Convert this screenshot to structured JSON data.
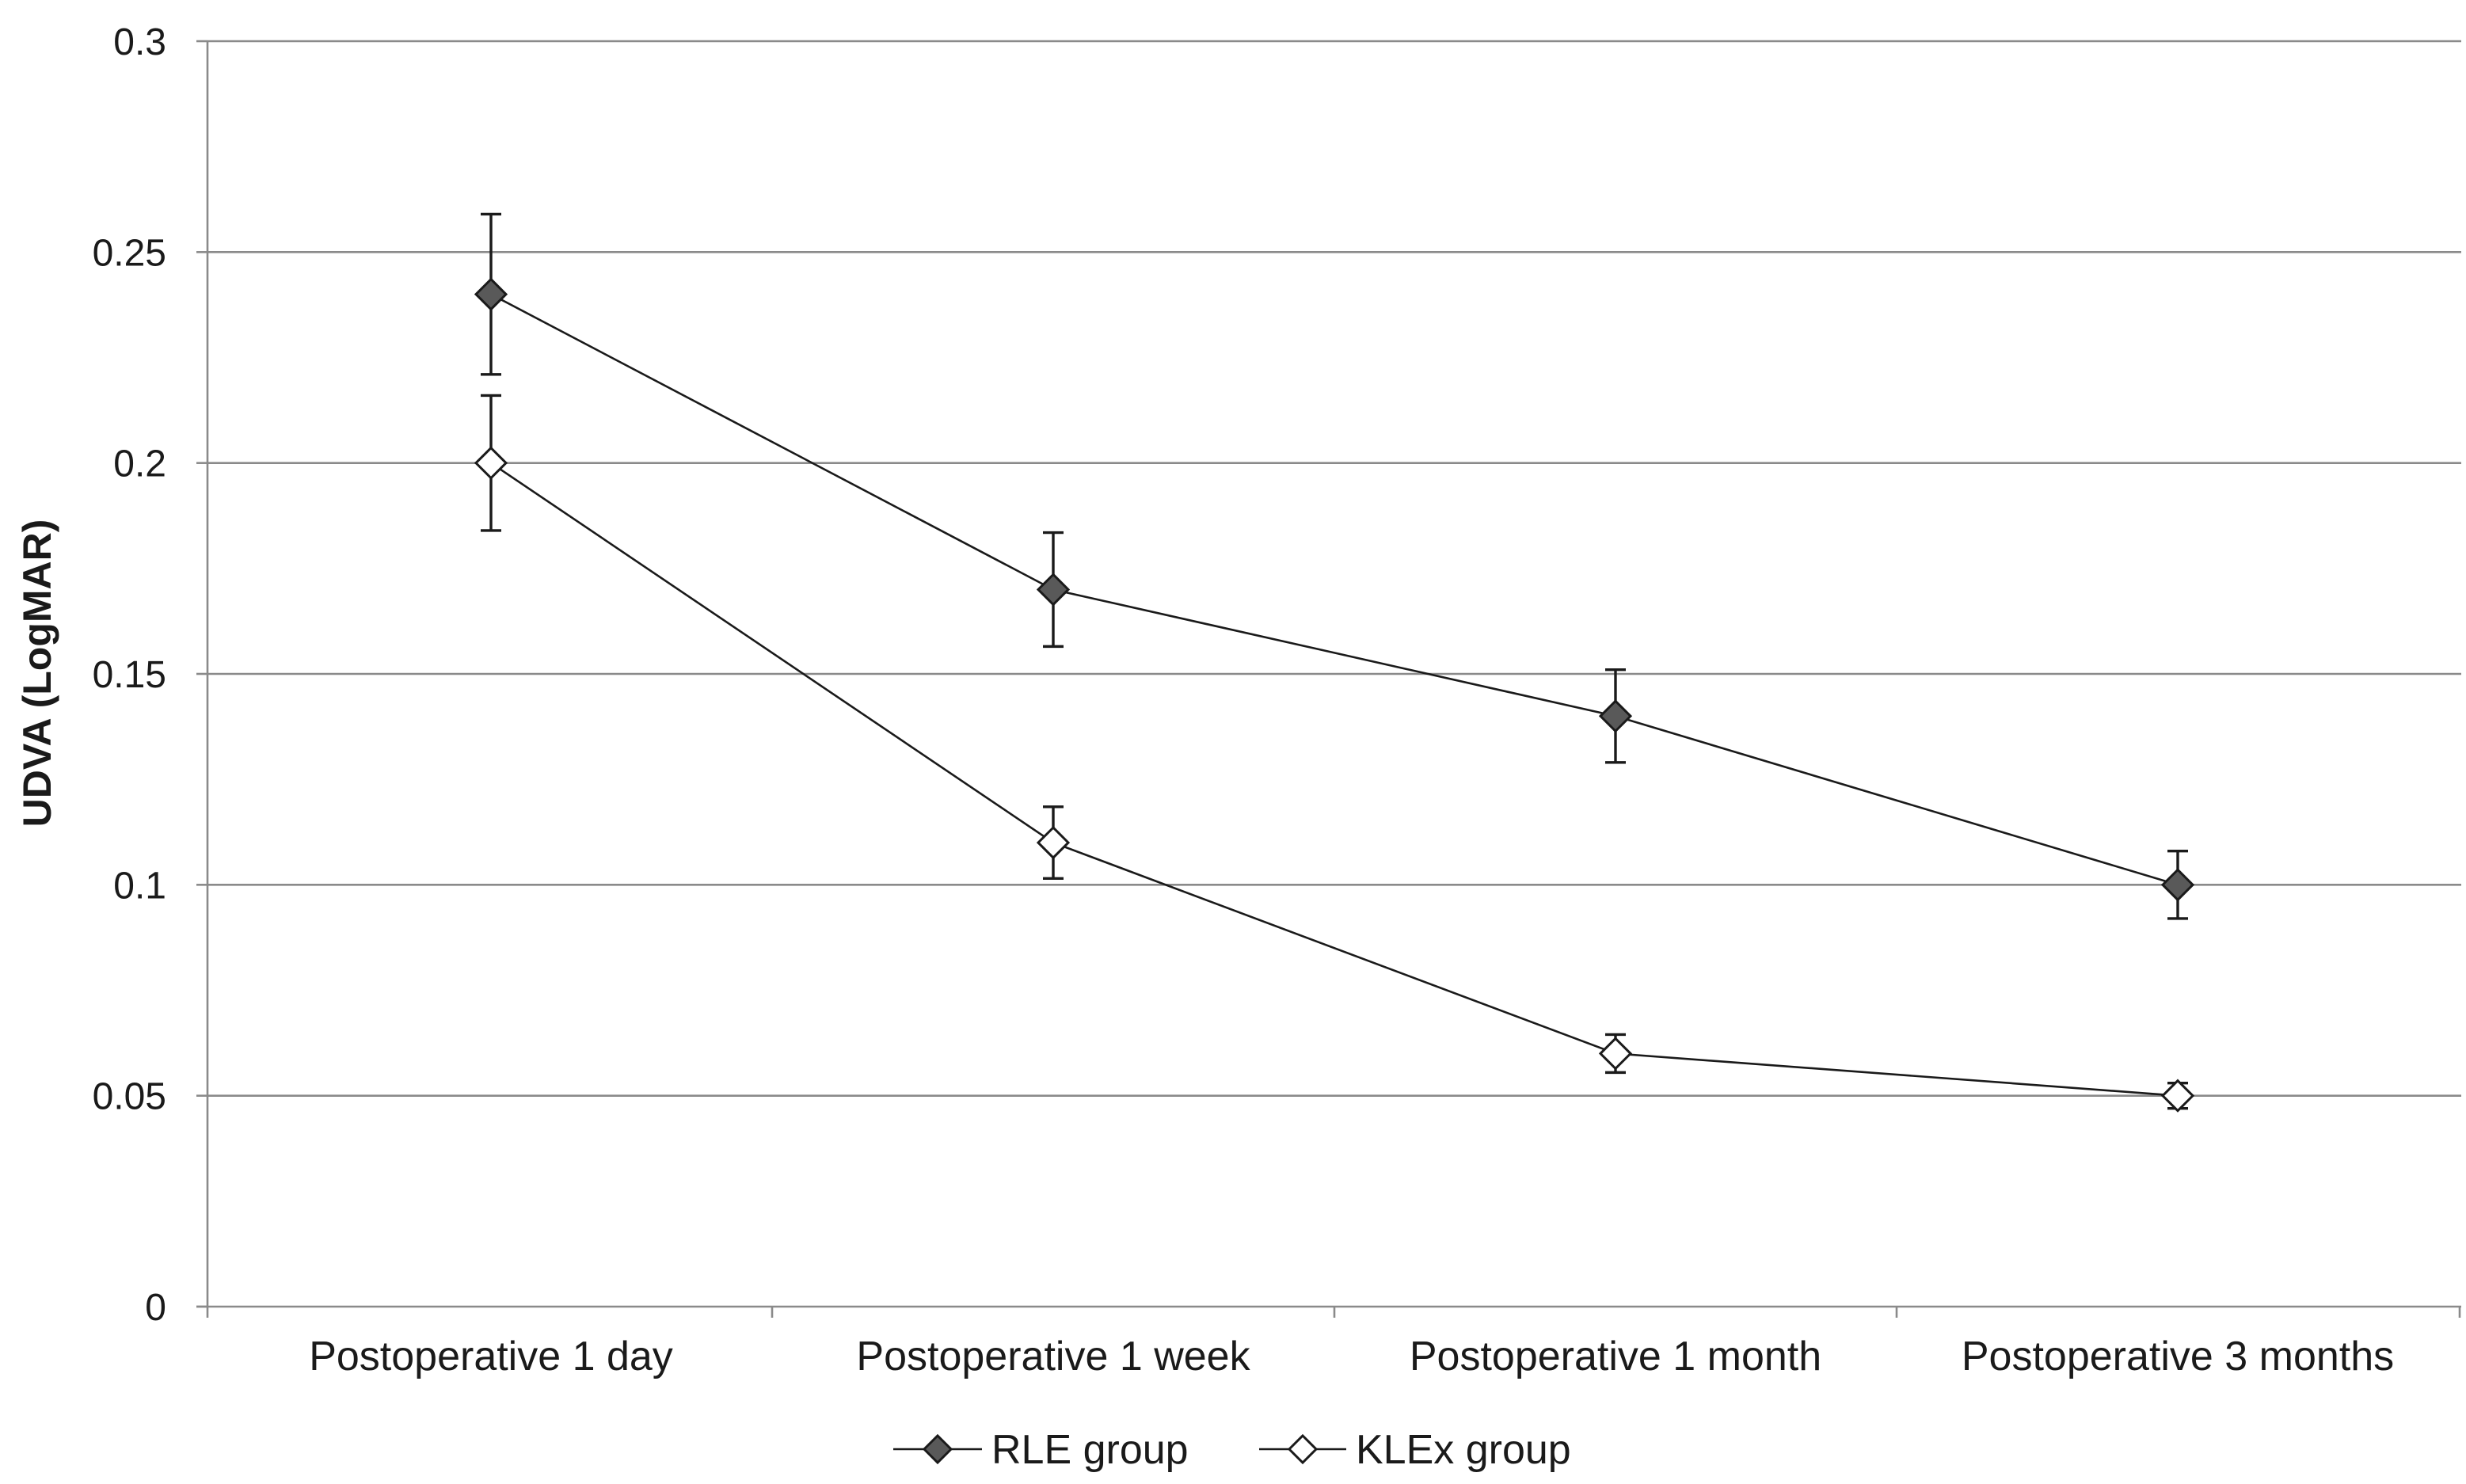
{
  "chart_data": {
    "type": "line",
    "title": "",
    "xlabel": "",
    "ylabel": "UDVA (LogMAR)",
    "ylim": [
      0,
      0.3
    ],
    "yticks": [
      0,
      0.05,
      0.1,
      0.15,
      0.2,
      0.25,
      0.3
    ],
    "ytick_labels": [
      "0",
      "0.05",
      "0.1",
      "0.15",
      "0.2",
      "0.25",
      "0.3"
    ],
    "grid": true,
    "legend_position": "bottom-center",
    "categories": [
      "Postoperative 1 day",
      "Postoperative 1 week",
      "Postoperative 1 month",
      "Postoperative 3 months"
    ],
    "series": [
      {
        "name": "RLE group",
        "marker": "filled-diamond",
        "color": "#595959",
        "values": [
          0.24,
          0.17,
          0.14,
          0.1
        ],
        "errors": [
          0.019,
          0.0135,
          0.011,
          0.008
        ]
      },
      {
        "name": "KLEx group",
        "marker": "open-diamond",
        "color": "#ffffff",
        "values": [
          0.2,
          0.11,
          0.06,
          0.05
        ],
        "errors": [
          0.016,
          0.0085,
          0.0045,
          0.003
        ]
      }
    ]
  }
}
